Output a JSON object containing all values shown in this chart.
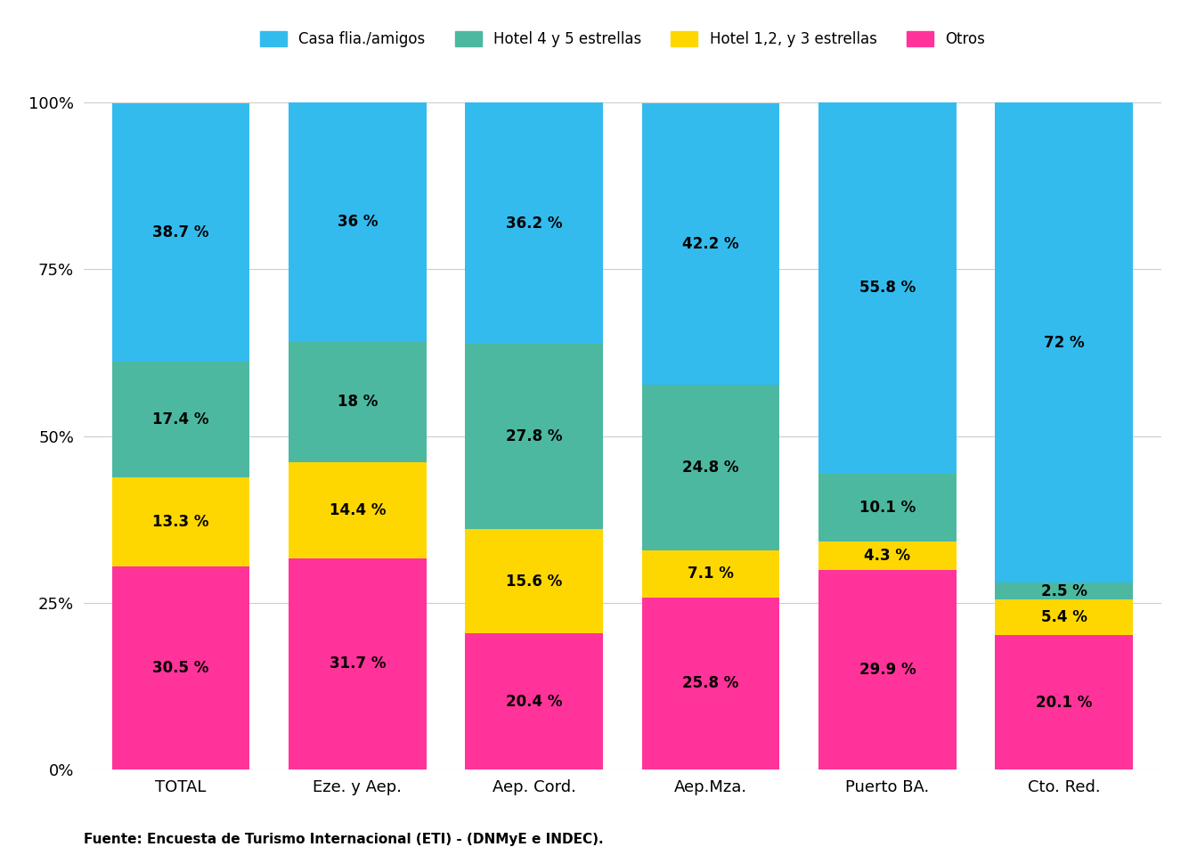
{
  "categories": [
    "TOTAL",
    "Eze. y Aep.",
    "Aep. Cord.",
    "Aep.Mza.",
    "Puerto BA.",
    "Cto. Red."
  ],
  "series": {
    "Otros": [
      30.5,
      31.7,
      20.4,
      25.8,
      29.9,
      20.1
    ],
    "Hotel 1,2, y 3 estrellas": [
      13.3,
      14.4,
      15.6,
      7.1,
      4.3,
      5.4
    ],
    "Hotel 4 y 5 estrellas": [
      17.4,
      18.0,
      27.8,
      24.8,
      10.1,
      2.5
    ],
    "Casa flia./amigos": [
      38.7,
      36.0,
      36.2,
      42.2,
      55.8,
      72.0
    ]
  },
  "colors": {
    "Otros": "#FF3399",
    "Hotel 1,2, y 3 estrellas": "#FFD700",
    "Hotel 4 y 5 estrellas": "#4DB8A0",
    "Casa flia./amigos": "#33BBEE"
  },
  "legend_order": [
    "Casa flia./amigos",
    "Hotel 4 y 5 estrellas",
    "Hotel 1,2, y 3 estrellas",
    "Otros"
  ],
  "yticks": [
    0,
    25,
    50,
    75,
    100
  ],
  "ytick_labels": [
    "0%",
    "25%",
    "50%",
    "75%",
    "100%"
  ],
  "source_text": "Fuente: Encuesta de Turismo Internacional (ETI) - (DNMyE e INDEC).",
  "background_color": "#FFFFFF",
  "bar_width": 0.78
}
